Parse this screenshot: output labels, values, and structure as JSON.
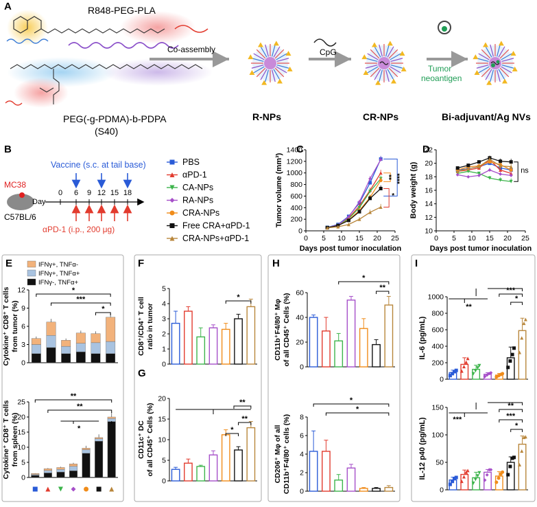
{
  "colors": {
    "PBS": "#2a5bd7",
    "aPD1": "#e23b2e",
    "CANPs": "#3cb44b",
    "RANPs": "#a64fc9",
    "CRANPs": "#f08c1a",
    "FreeCRA": "#111111",
    "CRAaPD1": "#b8863b",
    "stack_tnfa_only": "#f2b27b",
    "stack_both": "#a9c3e0",
    "stack_ifng_only": "#111111"
  },
  "panelA": {
    "label": "A",
    "polymer1": "R848-PEG-PLA",
    "polymer2_line1": "PEG(-g-PDMA)-b-PDPA",
    "polymer2_line2": "(S40)",
    "coassembly": "Co-assembly",
    "cpg": "CpG",
    "neoantigen_line1": "Tumor",
    "neoantigen_line2": "neoantigen",
    "stage1": "R-NPs",
    "stage2": "CR-NPs",
    "stage3": "Bi-adjuvant/Ag NVs"
  },
  "panelB": {
    "label": "B",
    "vaccine_text": "Vaccine (s.c. at tail base)",
    "mouse_tumor": "MC38",
    "mouse_strain": "C57BL/6",
    "day_label": "Day",
    "days": [
      "0",
      "6",
      "9",
      "12",
      "15",
      "18"
    ],
    "apd1_text": "αPD-1 (i.p., 200 μg)"
  },
  "legend": [
    "PBS",
    "αPD-1",
    "CA-NPs",
    "RA-NPs",
    "CRA-NPs",
    "Free CRA+αPD-1",
    "CRA-NPs+αPD-1"
  ],
  "sig": {
    "s1": "*",
    "s2": "**",
    "s3": "***",
    "s4": "****",
    "ns": "ns"
  },
  "chart_data": [
    {
      "id": "C",
      "type": "line",
      "title": "",
      "xlabel": "Days post tumor inoculation",
      "ylabel": "Tumor volume (mm³)",
      "xlim": [
        0,
        25
      ],
      "ylim": [
        0,
        1400
      ],
      "xticks": [
        "0",
        "5",
        "10",
        "15",
        "20",
        "25"
      ],
      "yticks": [
        "0",
        "200",
        "400",
        "600",
        "800",
        "1000",
        "1200",
        "1400"
      ],
      "x": [
        6,
        9,
        12,
        15,
        18,
        21
      ],
      "series": [
        {
          "name": "PBS",
          "values": [
            60,
            110,
            250,
            480,
            830,
            1240
          ]
        },
        {
          "name": "αPD-1",
          "values": [
            55,
            100,
            220,
            430,
            700,
            1000
          ]
        },
        {
          "name": "CA-NPs",
          "values": [
            55,
            95,
            210,
            400,
            680,
            900
          ]
        },
        {
          "name": "RA-NPs",
          "values": [
            55,
            100,
            240,
            500,
            900,
            1230
          ]
        },
        {
          "name": "CRA-NPs",
          "values": [
            55,
            90,
            190,
            350,
            580,
            870
          ]
        },
        {
          "name": "Free CRA+αPD-1",
          "values": [
            55,
            90,
            180,
            330,
            560,
            730
          ]
        },
        {
          "name": "CRA-NPs+αPD-1",
          "values": [
            50,
            70,
            110,
            200,
            320,
            410
          ]
        }
      ]
    },
    {
      "id": "D",
      "type": "line",
      "xlabel": "Days post tumor inoculation",
      "ylabel": "Body weight (g)",
      "xlim": [
        0,
        25
      ],
      "ylim": [
        10,
        22
      ],
      "xticks": [
        "0",
        "5",
        "10",
        "15",
        "20",
        "25"
      ],
      "yticks": [
        "10",
        "12",
        "14",
        "16",
        "18",
        "20",
        "22"
      ],
      "x": [
        6,
        9,
        12,
        15,
        18,
        21
      ],
      "series": [
        {
          "name": "PBS",
          "values": [
            19.0,
            19.2,
            19.5,
            20.0,
            19.3,
            19.0
          ]
        },
        {
          "name": "αPD-1",
          "values": [
            18.8,
            19.0,
            19.3,
            20.5,
            19.0,
            18.5
          ]
        },
        {
          "name": "CA-NPs",
          "values": [
            18.5,
            18.8,
            18.5,
            17.8,
            17.5,
            17.3
          ]
        },
        {
          "name": "RA-NPs",
          "values": [
            18.3,
            18.0,
            18.2,
            19.0,
            18.4,
            18.2
          ]
        },
        {
          "name": "CRA-NPs",
          "values": [
            19.0,
            19.5,
            19.6,
            20.2,
            19.8,
            19.0
          ]
        },
        {
          "name": "Free CRA+αPD-1",
          "values": [
            19.3,
            19.7,
            20.2,
            20.8,
            20.3,
            20.2
          ]
        },
        {
          "name": "CRA-NPs+αPD-1",
          "values": [
            18.8,
            19.2,
            19.5,
            20.6,
            19.6,
            19.5
          ]
        }
      ]
    },
    {
      "id": "E1",
      "type": "bar",
      "ylabel_line1": "Cytokine⁺ CD8⁺ T cells",
      "ylabel_line2": "from tumor (%)",
      "ylim": [
        0,
        12
      ],
      "yticks": [
        "0",
        "3",
        "6",
        "9",
        "12"
      ],
      "legend": [
        "IFNγ+, TNFα-",
        "IFNγ+, TNFα+",
        "IFNγ-, TNFα+"
      ],
      "series": [
        {
          "name": "IFNγ-, TNFα+",
          "values": [
            1.5,
            2.5,
            1.5,
            1.8,
            1.5,
            1.5
          ]
        },
        {
          "name": "IFNγ+, TNFα+",
          "values": [
            1.5,
            2.0,
            1.2,
            1.4,
            1.8,
            2.0
          ]
        },
        {
          "name": "IFNγ+, TNFα-",
          "values": [
            1.0,
            2.2,
            1.0,
            1.7,
            1.5,
            4.0
          ]
        }
      ],
      "totals": [
        4.0,
        6.7,
        3.7,
        4.9,
        4.8,
        7.5
      ]
    },
    {
      "id": "E2",
      "type": "bar",
      "ylabel_line1": "Cytokine⁺ CD8⁺ T cells",
      "ylabel_line2": "from spleen (%)",
      "ylim": [
        0,
        25
      ],
      "yticks": [
        "0",
        "5",
        "10",
        "15",
        "20",
        "25"
      ],
      "series": [
        {
          "name": "IFNγ-, TNFα+",
          "values": [
            0.7,
            1.5,
            1.8,
            2.2,
            8.0,
            12.0,
            18.5
          ]
        },
        {
          "name": "IFNγ+, TNFα+",
          "values": [
            0.3,
            0.8,
            0.9,
            1.5,
            1.2,
            0.8,
            1.0
          ]
        },
        {
          "name": "IFNγ+, TNFα-",
          "values": [
            0.3,
            0.6,
            0.6,
            0.8,
            0.5,
            0.4,
            0.5
          ]
        }
      ],
      "markers": [
        "■",
        "▲",
        "▼",
        "◆",
        "●",
        "■",
        "▲"
      ]
    },
    {
      "id": "F",
      "type": "bar",
      "ylabel_line1": "CD8⁺/CD4⁺ T cell",
      "ylabel_line2": "ratio in tumor",
      "ylim": [
        0,
        5
      ],
      "yticks": [
        "0",
        "1",
        "2",
        "3",
        "4",
        "5"
      ],
      "values": [
        2.7,
        3.5,
        1.8,
        2.4,
        2.3,
        3.0,
        3.8
      ],
      "errors": [
        0.8,
        0.3,
        0.6,
        0.2,
        0.4,
        0.3,
        0.5
      ]
    },
    {
      "id": "G",
      "type": "bar",
      "ylabel_line1": "CD11c⁺ DC",
      "ylabel_line2": "of all CD45⁺ Cells (%)",
      "ylim": [
        0,
        20
      ],
      "yticks": [
        "0",
        "5",
        "10",
        "15",
        "20"
      ],
      "values": [
        2.8,
        4.3,
        3.5,
        6.3,
        11.2,
        7.5,
        12.9
      ],
      "errors": [
        0.5,
        1.0,
        0.3,
        1.0,
        1.2,
        0.8,
        1.5
      ]
    },
    {
      "id": "H1",
      "type": "bar",
      "ylabel_line1": "CD11b⁺F4/80⁺ Mφ",
      "ylabel_line2": "of all CD45⁺ Cells (%)",
      "ylim": [
        0,
        60
      ],
      "yticks": [
        "0",
        "20",
        "40",
        "60"
      ],
      "values": [
        40.0,
        29.0,
        21.0,
        54.0,
        31.0,
        18.0,
        50.0
      ],
      "errors": [
        2.0,
        11.0,
        6.0,
        3.0,
        8.0,
        4.0,
        7.0
      ]
    },
    {
      "id": "H2",
      "type": "bar",
      "ylabel_line1": "CD206⁺ Mφ of all",
      "ylabel_line2": "CD11b⁺F4/80⁺ cells (%)",
      "ylim": [
        0,
        8
      ],
      "yticks": [
        "0",
        "2",
        "4",
        "6",
        "8"
      ],
      "values": [
        4.3,
        4.3,
        1.2,
        2.5,
        0.3,
        0.3,
        0.4
      ],
      "errors": [
        2.2,
        1.2,
        0.6,
        0.4,
        0.1,
        0.1,
        0.2
      ]
    },
    {
      "id": "I1",
      "type": "bar",
      "ylabel": "IL-6 (pg/mL)",
      "ylim": [
        0,
        1000
      ],
      "yticks": [
        "0",
        "200",
        "400",
        "600",
        "800",
        "1000"
      ],
      "values": [
        80,
        180,
        120,
        60,
        50,
        260,
        590
      ],
      "errors": [
        30,
        80,
        50,
        20,
        20,
        130,
        150
      ]
    },
    {
      "id": "I2",
      "type": "bar",
      "ylabel": "IL-12 p40 (pg/mL)",
      "ylim": [
        0,
        150
      ],
      "yticks": [
        "0",
        "50",
        "100",
        "150"
      ],
      "values": [
        18,
        28,
        22,
        32,
        25,
        50,
        83
      ],
      "errors": [
        5,
        8,
        10,
        5,
        8,
        10,
        15
      ]
    }
  ]
}
